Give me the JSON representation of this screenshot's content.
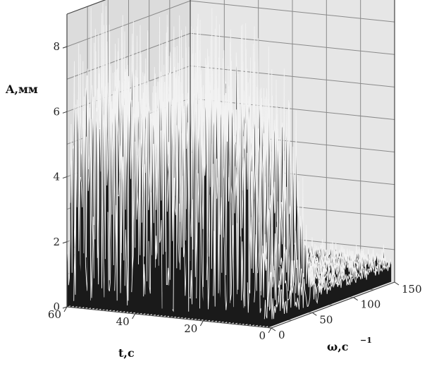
{
  "chart_data": {
    "type": "surface",
    "zlabel": "A,мм",
    "xlabel": "t,с",
    "ylabel_main": "ω,с",
    "ylabel_sup": "−1",
    "zlim": [
      0,
      9
    ],
    "xlim": [
      0,
      60
    ],
    "ylim": [
      0,
      150
    ],
    "z_ticks": [
      "0",
      "2",
      "4",
      "6",
      "8"
    ],
    "t_ticks": [
      "60",
      "40",
      "20",
      "0"
    ],
    "w_ticks": [
      "0",
      "50",
      "100",
      "150"
    ],
    "grid": true,
    "colors": {
      "surface_fill": "#1a1a1a",
      "surface_line": "#f2f2f2",
      "grid": "#8a8a8a",
      "wall": "#d9d9d9"
    },
    "resonance_band": {
      "omega_range": [
        0,
        60
      ],
      "peak_amplitude": 9,
      "note": ""
    },
    "background_amplitude": 1.2
  }
}
